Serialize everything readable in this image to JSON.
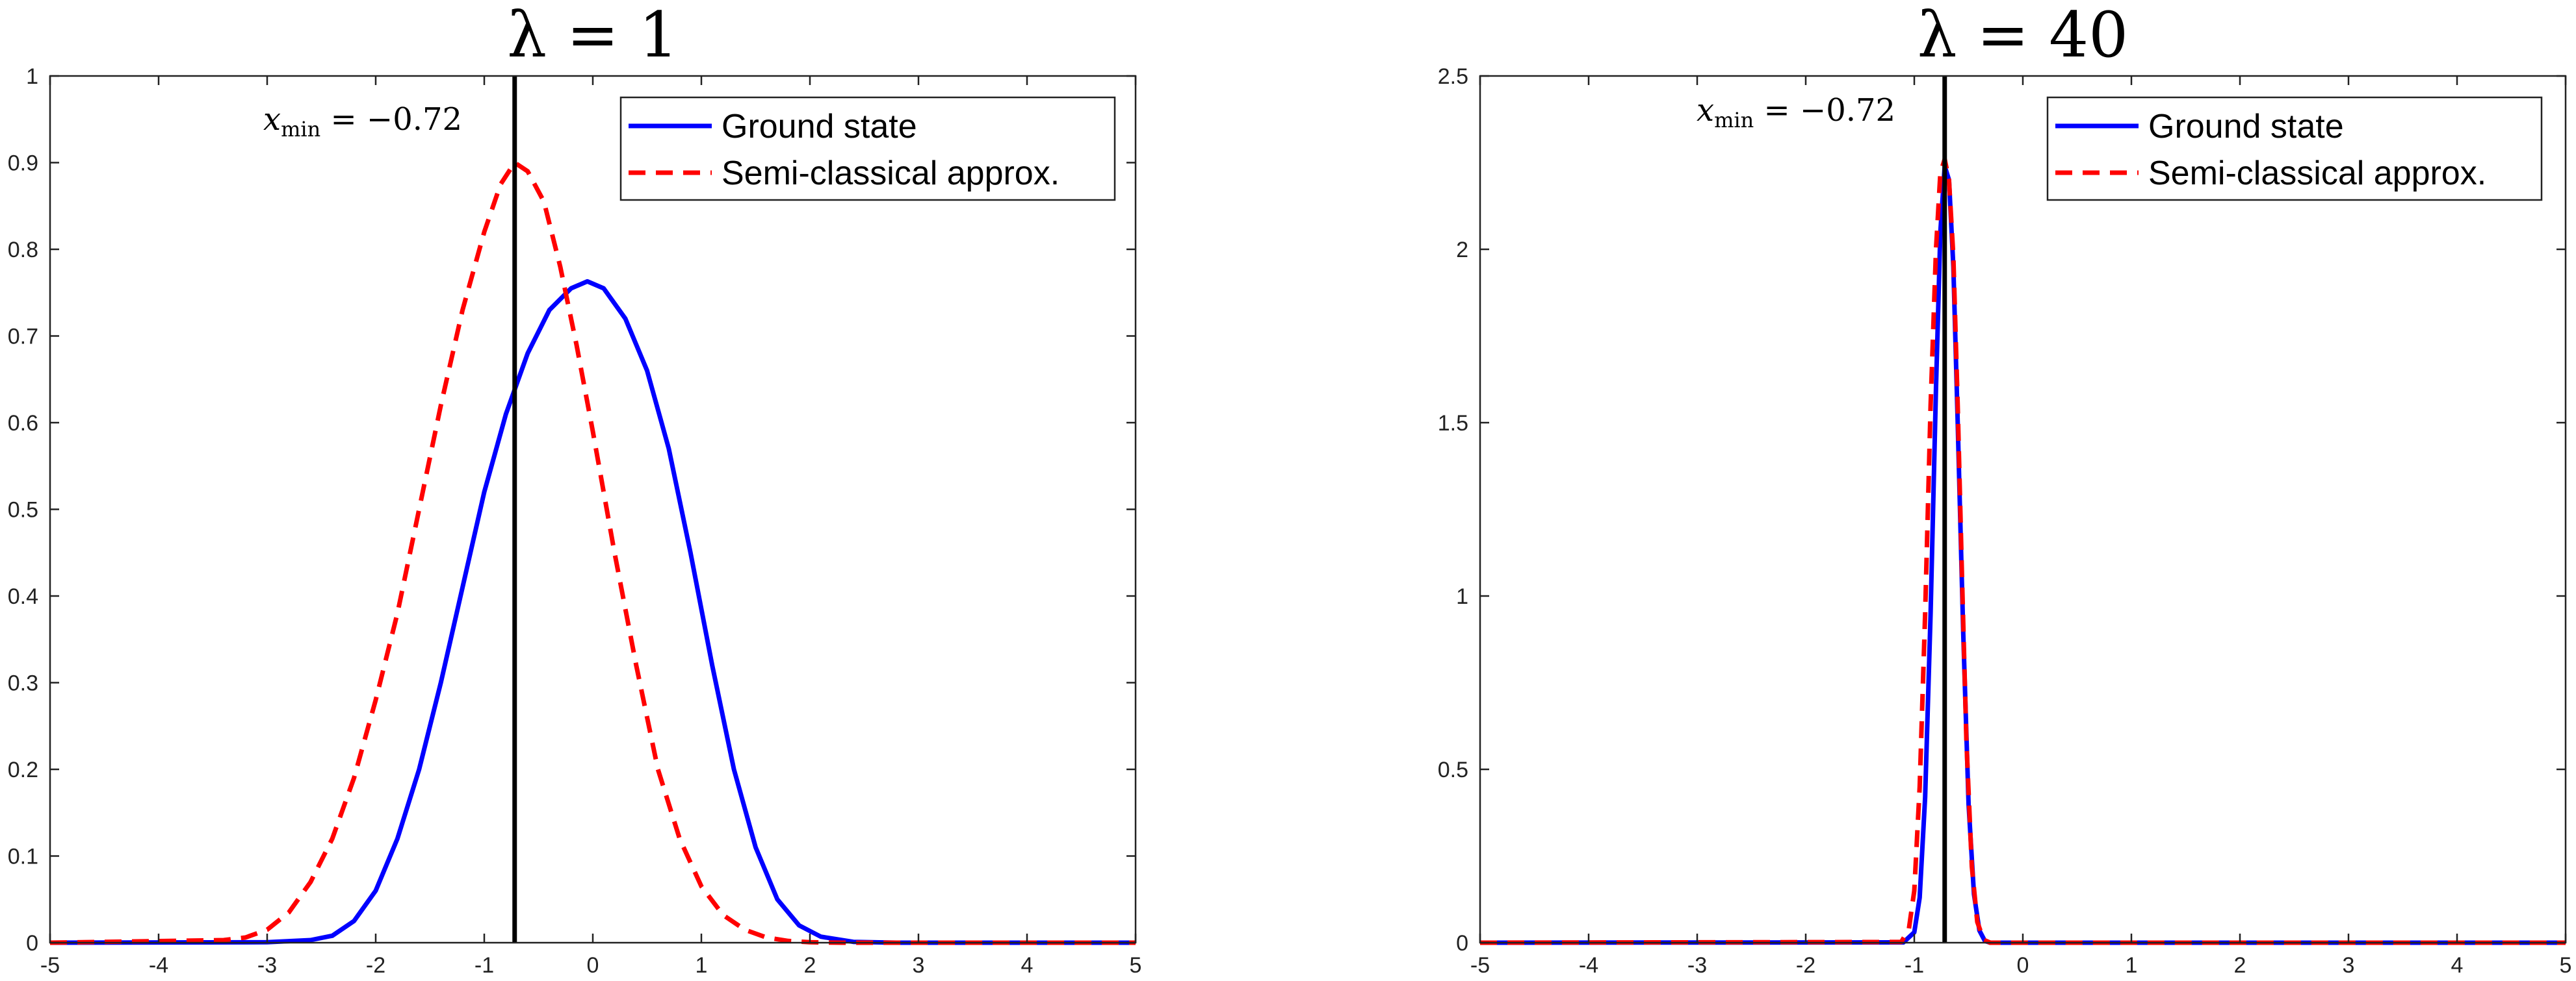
{
  "chart_data": [
    {
      "type": "line",
      "title": "λ = 1",
      "xlim": [
        -5,
        5
      ],
      "ylim": [
        0,
        1
      ],
      "x_ticks": [
        -5,
        -4,
        -3,
        -2,
        -1,
        0,
        1,
        2,
        3,
        4,
        5
      ],
      "y_ticks": [
        0,
        0.1,
        0.2,
        0.3,
        0.4,
        0.5,
        0.6,
        0.7,
        0.8,
        0.9,
        1
      ],
      "x_tick_labels": [
        "-5",
        "-4",
        "-3",
        "-2",
        "-1",
        "0",
        "1",
        "2",
        "3",
        "4",
        "5"
      ],
      "y_tick_labels": [
        "0",
        "0.1",
        "0.2",
        "0.3",
        "0.4",
        "0.5",
        "0.6",
        "0.7",
        "0.8",
        "0.9",
        "1"
      ],
      "grid": false,
      "legend_position": "top-right",
      "vline": {
        "x": -0.72,
        "color": "#000000"
      },
      "annotation": {
        "var": "x",
        "sub": "min",
        "rest": " = −0.72"
      },
      "series": [
        {
          "name": "Ground state",
          "color": "#0000ff",
          "style": "solid",
          "points": [
            [
              -5,
              0
            ],
            [
              -3.0,
              0.0005
            ],
            [
              -2.6,
              0.003
            ],
            [
              -2.4,
              0.008
            ],
            [
              -2.2,
              0.025
            ],
            [
              -2.0,
              0.06
            ],
            [
              -1.8,
              0.12
            ],
            [
              -1.6,
              0.2
            ],
            [
              -1.4,
              0.3
            ],
            [
              -1.2,
              0.41
            ],
            [
              -1.0,
              0.52
            ],
            [
              -0.8,
              0.61
            ],
            [
              -0.6,
              0.68
            ],
            [
              -0.4,
              0.73
            ],
            [
              -0.2,
              0.755
            ],
            [
              -0.05,
              0.763
            ],
            [
              0.1,
              0.755
            ],
            [
              0.3,
              0.72
            ],
            [
              0.5,
              0.66
            ],
            [
              0.7,
              0.57
            ],
            [
              0.9,
              0.45
            ],
            [
              1.1,
              0.32
            ],
            [
              1.3,
              0.2
            ],
            [
              1.5,
              0.11
            ],
            [
              1.7,
              0.05
            ],
            [
              1.9,
              0.02
            ],
            [
              2.1,
              0.007
            ],
            [
              2.4,
              0.001
            ],
            [
              2.8,
              0
            ],
            [
              5,
              0
            ]
          ]
        },
        {
          "name": "Semi-classical approx.",
          "color": "#ff0000",
          "style": "dashed",
          "points": [
            [
              -5,
              0
            ],
            [
              -3.4,
              0.003
            ],
            [
              -3.2,
              0.006
            ],
            [
              -3.0,
              0.015
            ],
            [
              -2.8,
              0.035
            ],
            [
              -2.6,
              0.07
            ],
            [
              -2.4,
              0.12
            ],
            [
              -2.2,
              0.19
            ],
            [
              -2.0,
              0.28
            ],
            [
              -1.8,
              0.38
            ],
            [
              -1.6,
              0.5
            ],
            [
              -1.4,
              0.62
            ],
            [
              -1.2,
              0.73
            ],
            [
              -1.0,
              0.82
            ],
            [
              -0.85,
              0.875
            ],
            [
              -0.72,
              0.9
            ],
            [
              -0.6,
              0.89
            ],
            [
              -0.45,
              0.855
            ],
            [
              -0.3,
              0.78
            ],
            [
              -0.15,
              0.69
            ],
            [
              0.0,
              0.59
            ],
            [
              0.2,
              0.45
            ],
            [
              0.4,
              0.32
            ],
            [
              0.6,
              0.2
            ],
            [
              0.8,
              0.12
            ],
            [
              1.0,
              0.065
            ],
            [
              1.2,
              0.032
            ],
            [
              1.4,
              0.015
            ],
            [
              1.6,
              0.006
            ],
            [
              1.8,
              0.002
            ],
            [
              2.0,
              0.0005
            ],
            [
              2.3,
              0
            ],
            [
              5,
              0
            ]
          ]
        }
      ]
    },
    {
      "type": "line",
      "title": "λ = 40",
      "xlim": [
        -5,
        5
      ],
      "ylim": [
        0,
        2.5
      ],
      "x_ticks": [
        -5,
        -4,
        -3,
        -2,
        -1,
        0,
        1,
        2,
        3,
        4,
        5
      ],
      "y_ticks": [
        0,
        0.5,
        1,
        1.5,
        2,
        2.5
      ],
      "x_tick_labels": [
        "-5",
        "-4",
        "-3",
        "-2",
        "-1",
        "0",
        "1",
        "2",
        "3",
        "4",
        "5"
      ],
      "y_tick_labels": [
        "0",
        "0.5",
        "1",
        "1.5",
        "2",
        "2.5"
      ],
      "grid": false,
      "legend_position": "top-right",
      "vline": {
        "x": -0.72,
        "color": "#000000"
      },
      "annotation": {
        "var": "x",
        "sub": "min",
        "rest": " = −0.72"
      },
      "series": [
        {
          "name": "Ground state",
          "color": "#0000ff",
          "style": "solid",
          "points": [
            [
              -5,
              0
            ],
            [
              -1.1,
              0.001
            ],
            [
              -1.0,
              0.03
            ],
            [
              -0.95,
              0.13
            ],
            [
              -0.9,
              0.42
            ],
            [
              -0.85,
              0.95
            ],
            [
              -0.8,
              1.6
            ],
            [
              -0.76,
              2.05
            ],
            [
              -0.72,
              2.24
            ],
            [
              -0.68,
              2.2
            ],
            [
              -0.64,
              1.95
            ],
            [
              -0.6,
              1.5
            ],
            [
              -0.55,
              0.9
            ],
            [
              -0.5,
              0.4
            ],
            [
              -0.45,
              0.14
            ],
            [
              -0.4,
              0.035
            ],
            [
              -0.35,
              0.005
            ],
            [
              -0.3,
              0
            ],
            [
              5,
              0
            ]
          ]
        },
        {
          "name": "Semi-classical approx.",
          "color": "#ff0000",
          "style": "dashed",
          "points": [
            [
              -5,
              0
            ],
            [
              -1.12,
              0.002
            ],
            [
              -1.05,
              0.04
            ],
            [
              -1.0,
              0.15
            ],
            [
              -0.95,
              0.45
            ],
            [
              -0.9,
              0.95
            ],
            [
              -0.85,
              1.55
            ],
            [
              -0.8,
              2.0
            ],
            [
              -0.76,
              2.22
            ],
            [
              -0.72,
              2.26
            ],
            [
              -0.68,
              2.2
            ],
            [
              -0.64,
              1.98
            ],
            [
              -0.6,
              1.55
            ],
            [
              -0.56,
              1.05
            ],
            [
              -0.52,
              0.58
            ],
            [
              -0.47,
              0.22
            ],
            [
              -0.42,
              0.06
            ],
            [
              -0.36,
              0.008
            ],
            [
              -0.3,
              0
            ],
            [
              5,
              0
            ]
          ]
        }
      ]
    }
  ]
}
